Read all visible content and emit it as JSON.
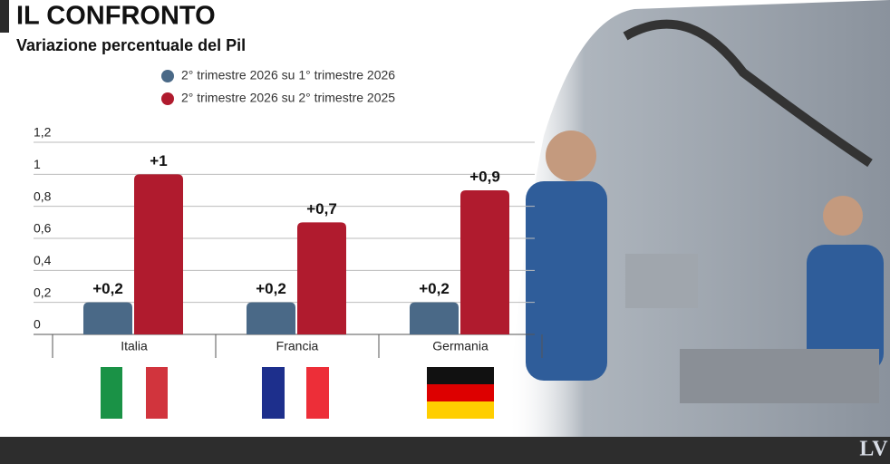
{
  "chart_data": {
    "type": "bar",
    "title": "IL CONFRONTO",
    "subtitle": "Variazione percentuale del Pil",
    "categories": [
      "Italia",
      "Francia",
      "Germania"
    ],
    "series": [
      {
        "name": "2° trimestre 2026 su 1° trimestre 2026",
        "color": "#4a6987",
        "values": [
          0.2,
          0.2,
          0.2
        ],
        "value_labels": [
          "+0,2",
          "+0,2",
          "+0,2"
        ]
      },
      {
        "name": "2° trimestre 2026 su 2° trimestre 2025",
        "color": "#b01b2e",
        "values": [
          1,
          0.7,
          0.9
        ],
        "value_labels": [
          "+1",
          "+0,7",
          "+0,9"
        ]
      }
    ],
    "ylim": [
      0,
      1.2
    ],
    "yticks": [
      0,
      {
        "value": 0.2,
        "label": "0,2"
      },
      {
        "value": 0.4,
        "label": "0,4"
      },
      {
        "value": 0.6,
        "label": "0,6"
      },
      {
        "value": 0.8,
        "label": "0,8"
      },
      1,
      {
        "value": 1.2,
        "label": "1,2"
      }
    ],
    "grid": true
  },
  "logo": "LV"
}
